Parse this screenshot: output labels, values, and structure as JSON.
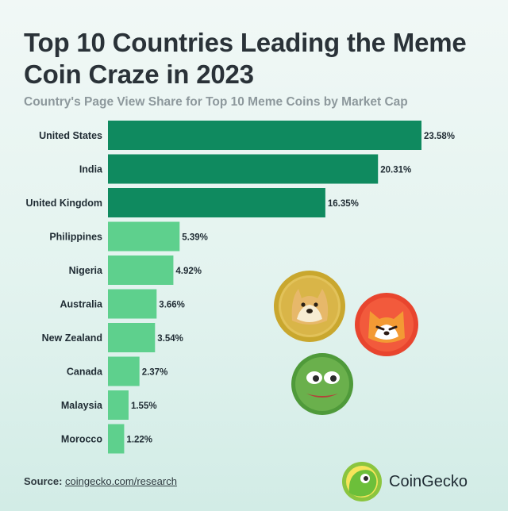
{
  "header": {
    "title": "Top 10 Countries Leading the Meme Coin Craze in 2023",
    "subtitle": "Country's Page View Share for Top 10 Meme Coins by Market Cap"
  },
  "chart_data": {
    "type": "bar",
    "orientation": "horizontal",
    "title": "Top 10 Countries Leading the Meme Coin Craze in 2023",
    "subtitle": "Country's Page View Share for Top 10 Meme Coins by Market Cap",
    "categories": [
      "United States",
      "India",
      "United Kingdom",
      "Philippines",
      "Nigeria",
      "Australia",
      "New Zealand",
      "Canada",
      "Malaysia",
      "Morocco"
    ],
    "values": [
      23.58,
      20.31,
      16.35,
      5.39,
      4.92,
      3.66,
      3.54,
      2.37,
      1.55,
      1.22
    ],
    "data_labels": [
      "23.58%",
      "20.31%",
      "16.35%",
      "5.39%",
      "4.92%",
      "3.66%",
      "3.54%",
      "2.37%",
      "1.55%",
      "1.22%"
    ],
    "unit": "%",
    "xlim": [
      0,
      23.58
    ],
    "grid": false,
    "colors": {
      "top": "#0f8a5f",
      "rest": "#5ed08d",
      "top_count": 3
    }
  },
  "footer": {
    "source_label": "Source:",
    "source_link": "coingecko.com/research",
    "brand": "CoinGecko"
  },
  "illustrations": [
    "doge-coin-icon",
    "shiba-coin-icon",
    "pepe-coin-icon",
    "coingecko-logo-icon"
  ]
}
